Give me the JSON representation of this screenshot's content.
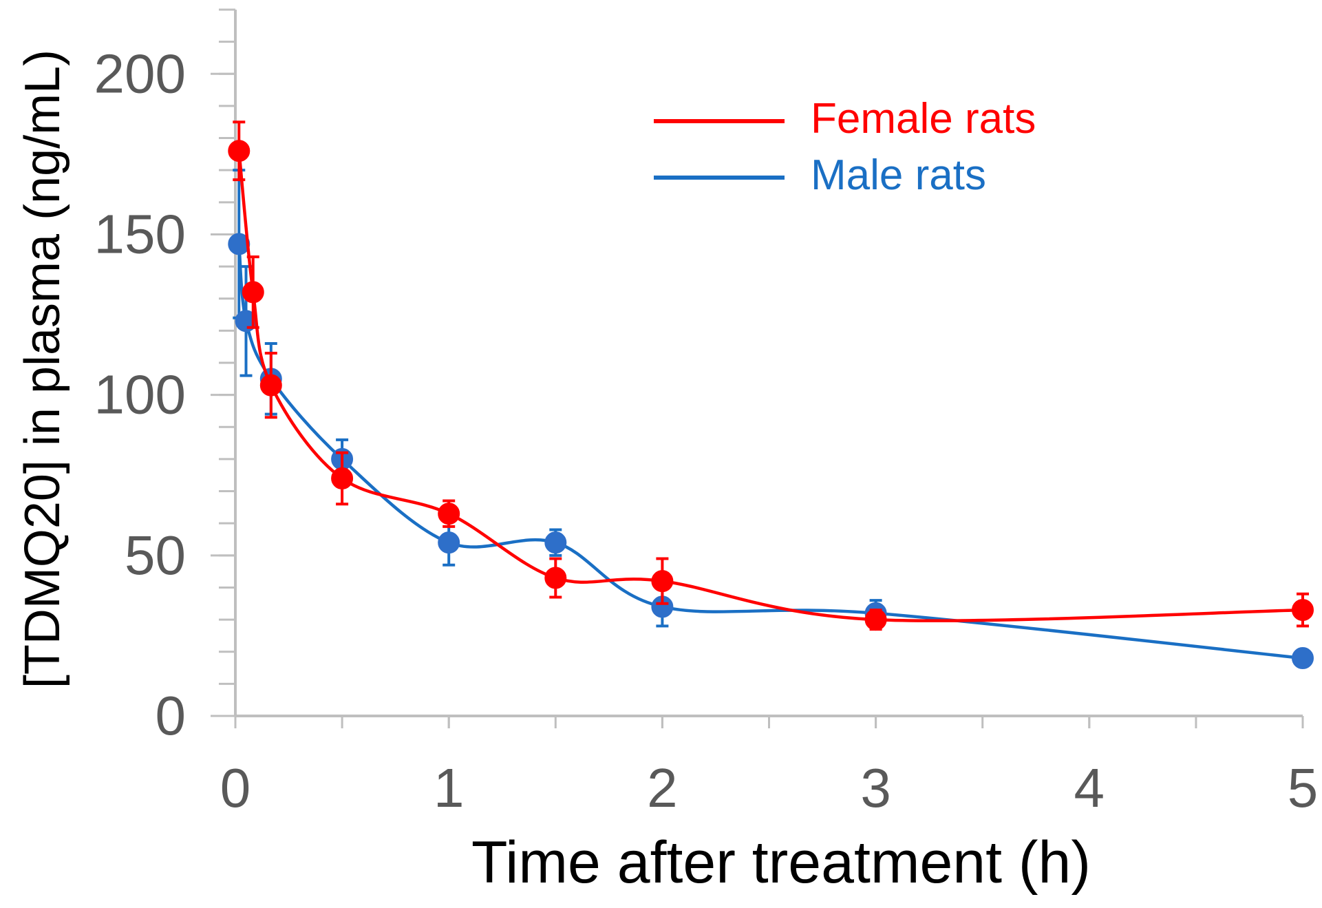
{
  "chart_data": {
    "type": "line",
    "title": "",
    "xlabel": "Time after treatment (h)",
    "ylabel": "[TDMQ20] in plasma (ng/mL)",
    "xlim": [
      0,
      5
    ],
    "ylim": [
      0,
      220
    ],
    "x_ticks": [
      0,
      1,
      2,
      3,
      4,
      5
    ],
    "x_tick_labels": [
      "0",
      "1",
      "2",
      "3",
      "4",
      "5"
    ],
    "x_minor_step": 0.5,
    "y_ticks": [
      0,
      50,
      100,
      150,
      200
    ],
    "y_tick_labels": [
      "0",
      "50",
      "100",
      "150",
      "200"
    ],
    "y_minor_step": 10,
    "grid": false,
    "legend_position": "top-right",
    "series": [
      {
        "name": "Male rats",
        "color": "#1a6fc4",
        "marker_color": "#2e6fc9",
        "x": [
          0.017,
          0.05,
          0.167,
          0.5,
          1,
          1.5,
          2,
          3,
          5
        ],
        "y": [
          147,
          123,
          105,
          80,
          54,
          54,
          34,
          32,
          18
        ],
        "error": [
          23,
          17,
          11,
          6,
          7,
          4,
          6,
          4,
          2
        ]
      },
      {
        "name": "Female rats",
        "color": "#ff0000",
        "marker_color": "#ff0000",
        "x": [
          0.017,
          0.083,
          0.167,
          0.5,
          1,
          1.5,
          2,
          3,
          5
        ],
        "y": [
          176,
          132,
          103,
          74,
          63,
          43,
          42,
          30,
          33
        ],
        "error": [
          9,
          11,
          10,
          8,
          4,
          6,
          7,
          3,
          5
        ]
      }
    ]
  }
}
